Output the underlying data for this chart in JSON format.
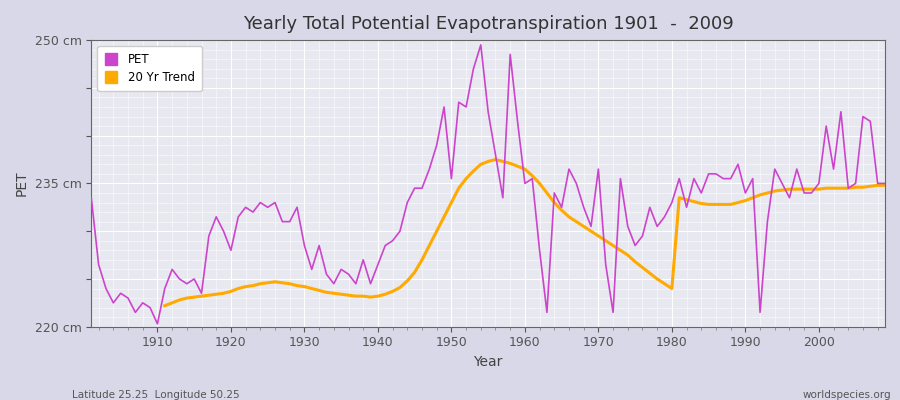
{
  "title": "Yearly Total Potential Evapotranspiration 1901  -  2009",
  "xlabel": "Year",
  "ylabel": "PET",
  "bottom_left_label": "Latitude 25.25  Longitude 50.25",
  "bottom_right_label": "worldspecies.org",
  "pet_color": "#cc44cc",
  "trend_color": "#ffaa00",
  "background_color": "#e8e8f0",
  "grid_color": "#ffffff",
  "ylim": [
    220,
    250
  ],
  "yticks": [
    220,
    225,
    230,
    235,
    240,
    245,
    250
  ],
  "ytick_labels": [
    "220 cm",
    "",
    "",
    "235 cm",
    "",
    "",
    "250 cm"
  ],
  "years": [
    1901,
    1902,
    1903,
    1904,
    1905,
    1906,
    1907,
    1908,
    1909,
    1910,
    1911,
    1912,
    1913,
    1914,
    1915,
    1916,
    1917,
    1918,
    1919,
    1920,
    1921,
    1922,
    1923,
    1924,
    1925,
    1926,
    1927,
    1928,
    1929,
    1930,
    1931,
    1932,
    1933,
    1934,
    1935,
    1936,
    1937,
    1938,
    1939,
    1940,
    1941,
    1942,
    1943,
    1944,
    1945,
    1946,
    1947,
    1948,
    1949,
    1950,
    1951,
    1952,
    1953,
    1954,
    1955,
    1956,
    1957,
    1958,
    1959,
    1960,
    1961,
    1962,
    1963,
    1964,
    1965,
    1966,
    1967,
    1968,
    1969,
    1970,
    1971,
    1972,
    1973,
    1974,
    1975,
    1976,
    1977,
    1978,
    1979,
    1980,
    1981,
    1982,
    1983,
    1984,
    1985,
    1986,
    1987,
    1988,
    1989,
    1990,
    1991,
    1992,
    1993,
    1994,
    1995,
    1996,
    1997,
    1998,
    1999,
    2000,
    2001,
    2002,
    2003,
    2004,
    2005,
    2006,
    2007,
    2008,
    2009
  ],
  "pet_values": [
    233.5,
    226.5,
    224.0,
    222.5,
    223.5,
    223.0,
    221.5,
    222.5,
    222.0,
    220.3,
    224.0,
    226.0,
    225.0,
    224.5,
    225.0,
    223.5,
    229.5,
    231.5,
    230.0,
    228.0,
    231.5,
    232.5,
    232.0,
    233.0,
    232.5,
    233.0,
    231.0,
    231.0,
    232.5,
    228.5,
    226.0,
    228.5,
    225.5,
    224.5,
    226.0,
    225.5,
    224.5,
    227.0,
    224.5,
    226.5,
    228.5,
    229.0,
    230.0,
    233.0,
    234.5,
    234.5,
    236.5,
    239.0,
    243.0,
    235.5,
    243.5,
    243.0,
    247.0,
    249.5,
    242.5,
    238.0,
    233.5,
    248.5,
    241.5,
    235.0,
    235.5,
    228.0,
    221.5,
    234.0,
    232.5,
    236.5,
    235.0,
    232.5,
    230.5,
    236.5,
    226.5,
    221.5,
    235.5,
    230.5,
    228.5,
    229.5,
    232.5,
    230.5,
    231.5,
    233.0,
    235.5,
    232.5,
    235.5,
    234.0,
    236.0,
    236.0,
    235.5,
    235.5,
    237.0,
    234.0,
    235.5,
    221.5,
    231.0,
    236.5,
    235.0,
    233.5,
    236.5,
    234.0,
    234.0,
    235.0,
    241.0,
    236.5,
    242.5,
    234.5,
    235.0,
    242.0,
    241.5,
    235.0,
    235.0
  ],
  "trend_values": [
    null,
    null,
    null,
    null,
    null,
    null,
    null,
    null,
    null,
    null,
    222.2,
    222.5,
    222.8,
    223.0,
    223.1,
    223.2,
    223.3,
    223.4,
    223.5,
    223.7,
    224.0,
    224.2,
    224.3,
    224.5,
    224.6,
    224.7,
    224.6,
    224.5,
    224.3,
    224.2,
    224.0,
    223.8,
    223.6,
    223.5,
    223.4,
    223.3,
    223.2,
    223.2,
    223.1,
    223.2,
    223.4,
    223.7,
    224.1,
    224.8,
    225.7,
    227.0,
    228.5,
    230.0,
    231.5,
    233.0,
    234.5,
    235.5,
    236.3,
    237.0,
    237.3,
    237.5,
    237.3,
    237.1,
    236.8,
    236.5,
    235.8,
    235.0,
    234.0,
    233.0,
    232.2,
    231.5,
    231.0,
    230.5,
    230.0,
    229.5,
    229.0,
    228.5,
    228.0,
    227.5,
    226.8,
    226.2,
    225.6,
    225.0,
    224.5,
    224.0,
    233.5,
    233.3,
    233.1,
    232.9,
    232.8,
    232.8,
    232.8,
    232.8,
    233.0,
    233.2,
    233.5,
    233.8,
    234.0,
    234.2,
    234.3,
    234.4,
    234.4,
    234.4,
    234.4,
    234.4,
    234.5,
    234.5,
    234.5,
    234.5,
    234.6,
    234.6,
    234.7,
    234.8,
    234.8
  ]
}
